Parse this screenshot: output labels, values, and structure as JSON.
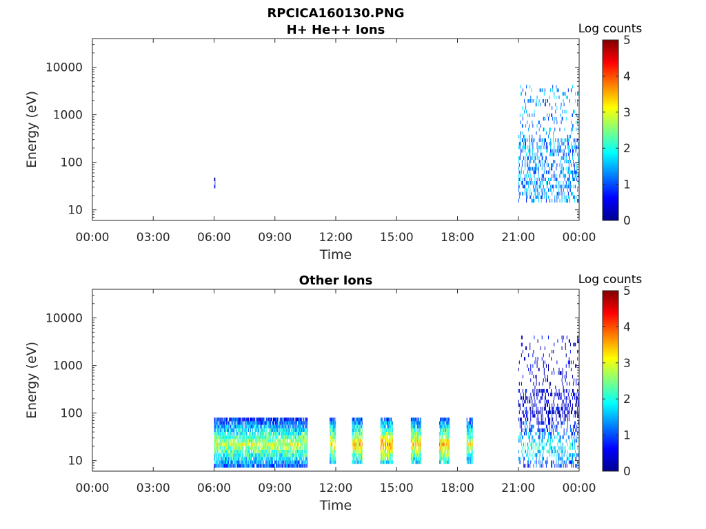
{
  "figure": {
    "filename_title": "RPCICA160130.PNG"
  },
  "chart_data": [
    {
      "type": "heatmap",
      "title": "H+ He++ Ions",
      "xlabel": "Time",
      "ylabel": "Energy (eV)",
      "x_ticks": [
        "00:00",
        "03:00",
        "06:00",
        "09:00",
        "12:00",
        "15:00",
        "18:00",
        "21:00",
        "00:00"
      ],
      "x_range_hours": [
        0,
        24
      ],
      "y_scale": "log",
      "y_range": [
        6,
        40000
      ],
      "y_ticks": [
        {
          "value": 10,
          "label": "10"
        },
        {
          "value": 100,
          "label": "100"
        },
        {
          "value": 1000,
          "label": "1000"
        },
        {
          "value": 10000,
          "label": "10000"
        }
      ],
      "colorbar": {
        "label": "Log counts",
        "range": [
          0,
          5
        ],
        "ticks": [
          "0",
          "1",
          "2",
          "3",
          "4",
          "5"
        ],
        "colormap": "jet"
      },
      "activity": [
        {
          "start_hour": 6.0,
          "end_hour": 6.05,
          "e_min": 28,
          "e_max": 45,
          "level": 0.4
        },
        {
          "start_hour": 21.0,
          "end_hour": 24.0,
          "e_min": 12,
          "e_max": 4000,
          "level": 1.3,
          "sparse": true
        }
      ]
    },
    {
      "type": "heatmap",
      "title": "Other Ions",
      "xlabel": "Time",
      "ylabel": "Energy (eV)",
      "x_ticks": [
        "00:00",
        "03:00",
        "06:00",
        "09:00",
        "12:00",
        "15:00",
        "18:00",
        "21:00",
        "00:00"
      ],
      "x_range_hours": [
        0,
        24
      ],
      "y_scale": "log",
      "y_range": [
        6,
        40000
      ],
      "y_ticks": [
        {
          "value": 10,
          "label": "10"
        },
        {
          "value": 100,
          "label": "100"
        },
        {
          "value": 1000,
          "label": "1000"
        },
        {
          "value": 10000,
          "label": "10000"
        }
      ],
      "colorbar": {
        "label": "Log counts",
        "range": [
          0,
          5
        ],
        "ticks": [
          "0",
          "1",
          "2",
          "3",
          "4",
          "5"
        ],
        "colormap": "jet"
      },
      "activity": [
        {
          "start_hour": 6.0,
          "end_hour": 10.6,
          "e_min": 7,
          "e_max": 80,
          "level": 2.8,
          "peak_energy": 20
        },
        {
          "start_hour": 11.7,
          "end_hour": 12.0,
          "e_min": 8,
          "e_max": 80,
          "level": 3.2,
          "peak_energy": 20
        },
        {
          "start_hour": 12.8,
          "end_hour": 13.3,
          "e_min": 8,
          "e_max": 80,
          "level": 3.3,
          "peak_energy": 20
        },
        {
          "start_hour": 14.2,
          "end_hour": 14.8,
          "e_min": 8,
          "e_max": 80,
          "level": 3.6,
          "peak_energy": 20
        },
        {
          "start_hour": 15.7,
          "end_hour": 16.2,
          "e_min": 8,
          "e_max": 80,
          "level": 3.4,
          "peak_energy": 20
        },
        {
          "start_hour": 17.1,
          "end_hour": 17.6,
          "e_min": 8,
          "e_max": 80,
          "level": 3.4,
          "peak_energy": 20
        },
        {
          "start_hour": 18.45,
          "end_hour": 18.75,
          "e_min": 8,
          "e_max": 80,
          "level": 3.0,
          "peak_energy": 20
        },
        {
          "start_hour": 21.0,
          "end_hour": 24.0,
          "e_min": 7,
          "e_max": 4000,
          "level": 2.0,
          "sparse": true,
          "peak_energy": 18
        }
      ]
    }
  ]
}
